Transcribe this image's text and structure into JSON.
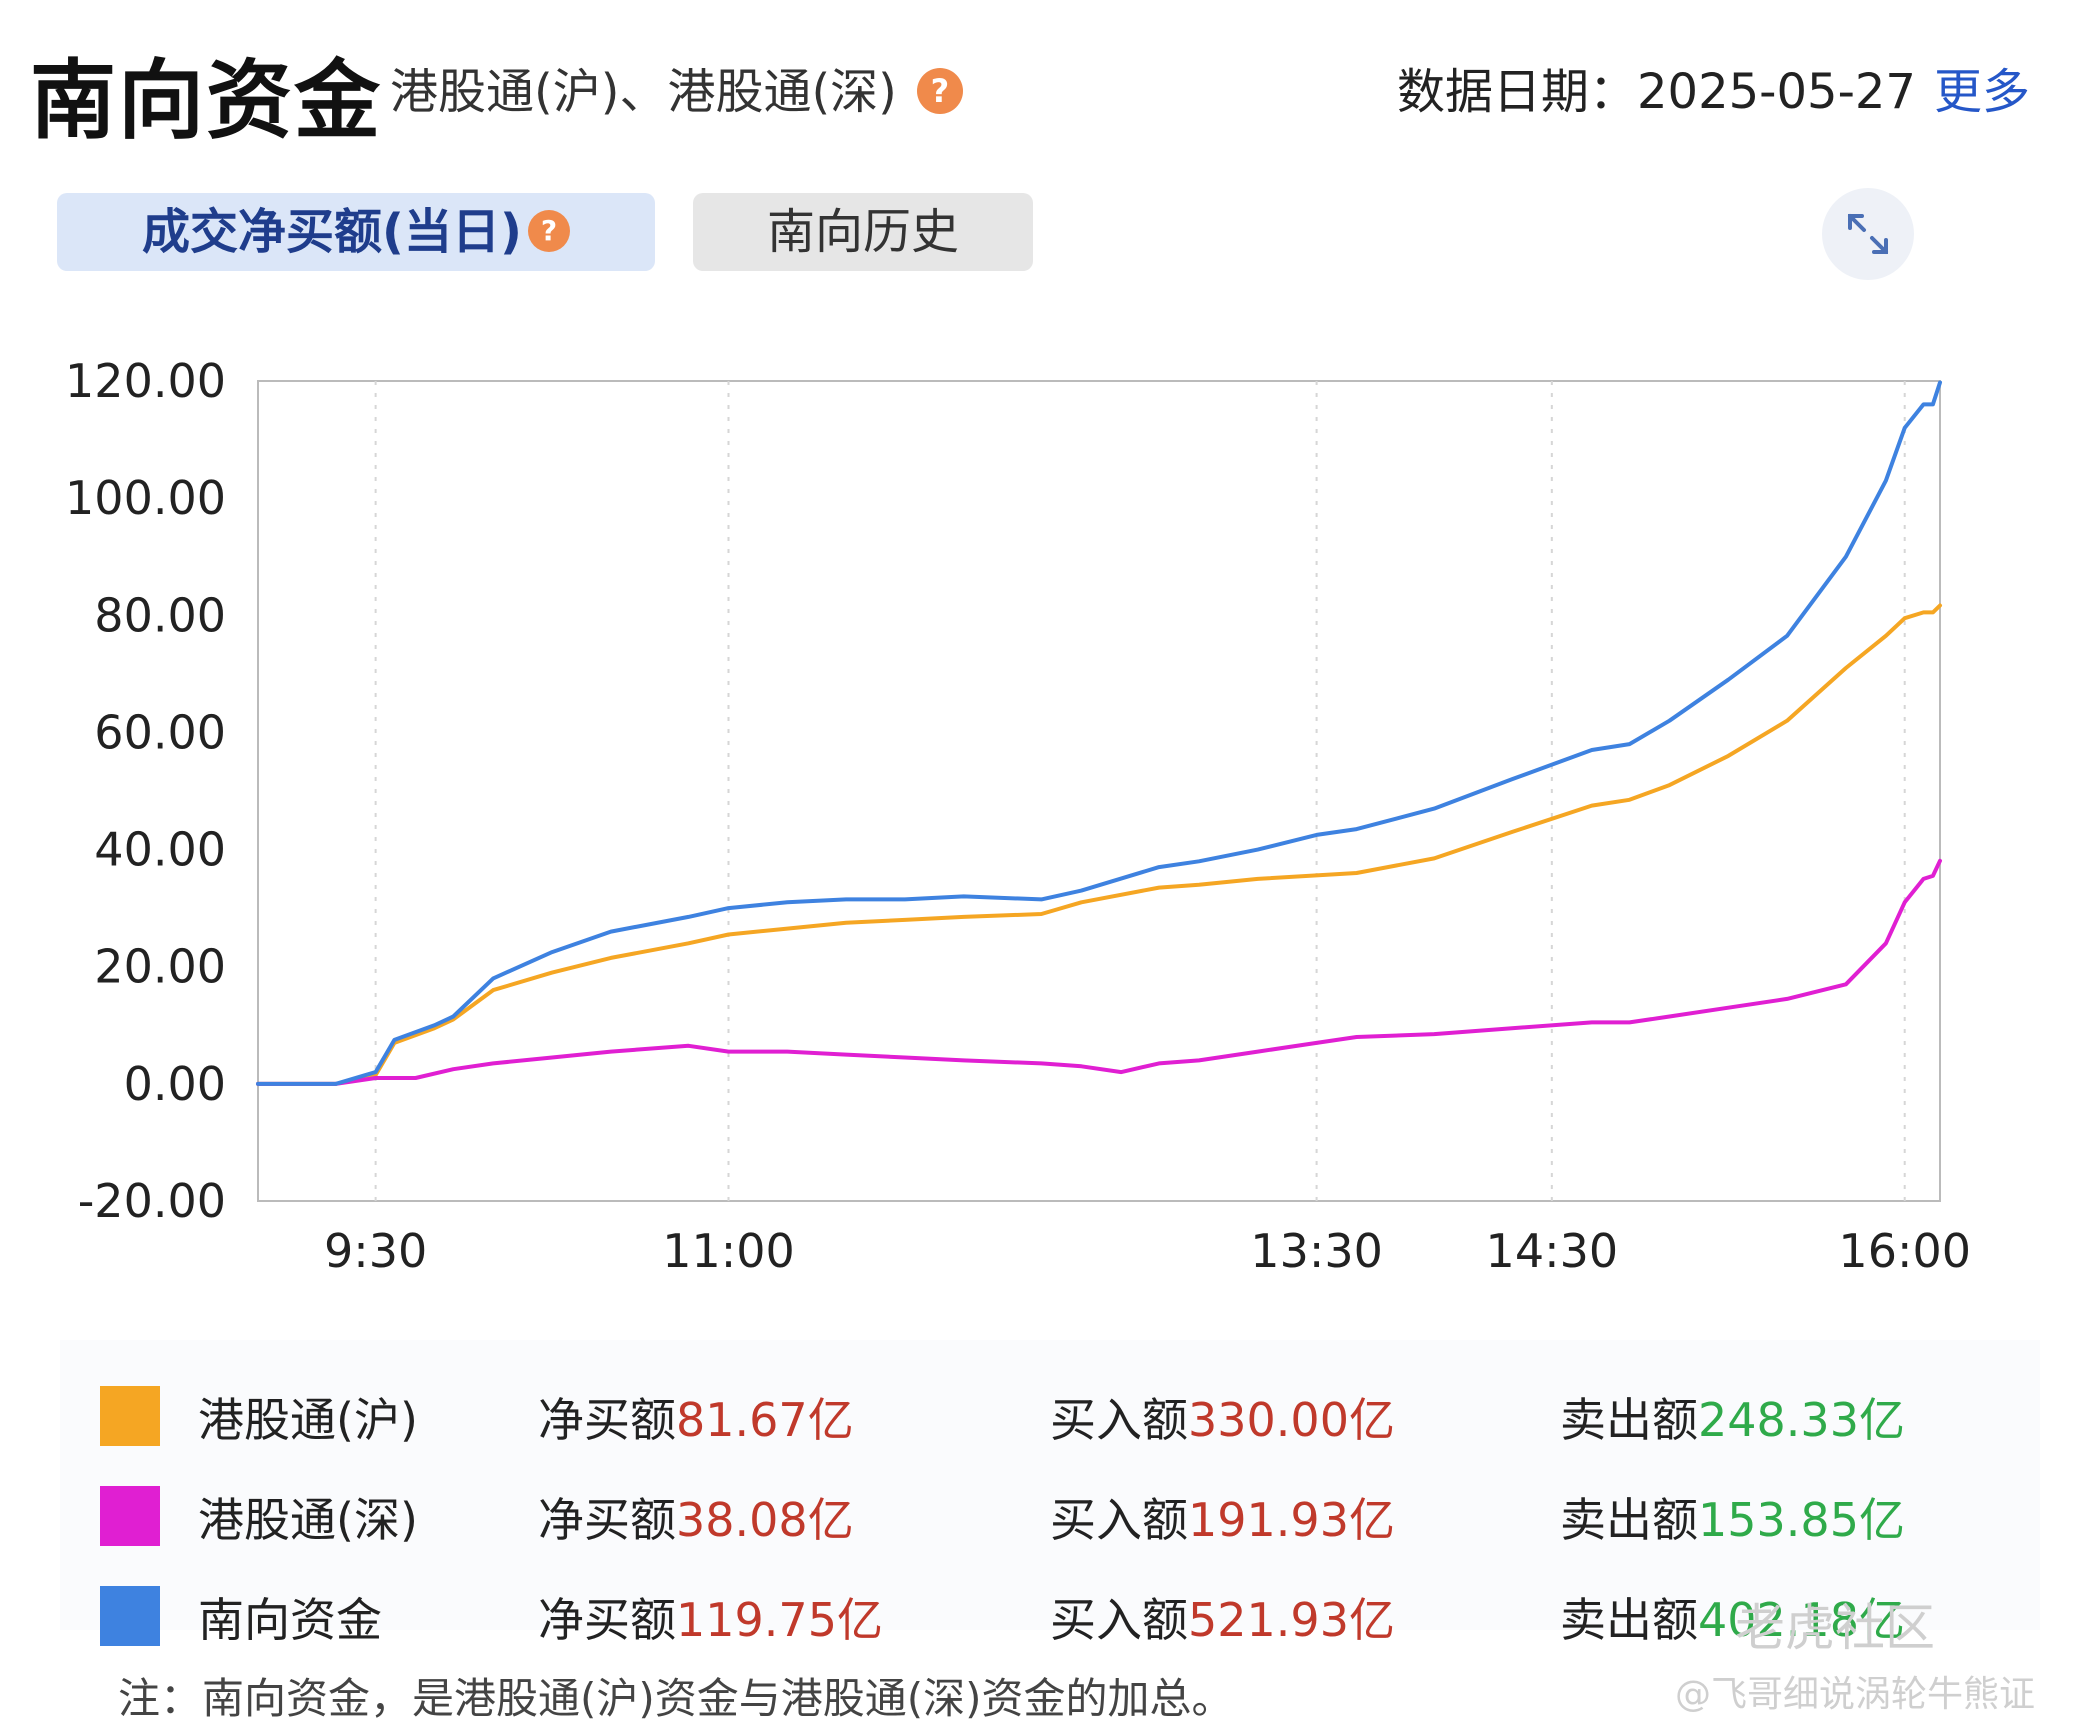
{
  "header": {
    "title": "南向资金",
    "subtitle": "港股通(沪)、港股通(深)",
    "help_glyph": "?",
    "date_label": "数据日期：2025-05-27",
    "more_label": "更多"
  },
  "tabs": [
    {
      "label": "成交净买额(当日)",
      "active": true
    },
    {
      "label": "南向历史",
      "active": false
    }
  ],
  "icons": {
    "expand": "expand-arrows-icon",
    "help": "question-circle-icon"
  },
  "colors": {
    "sh": "#F5A623",
    "sz": "#E01FD2",
    "total": "#3E82E0"
  },
  "chart_data": {
    "type": "line",
    "xlabel": "",
    "ylabel": "",
    "ylim": [
      -20,
      120
    ],
    "yticks": [
      "120.00",
      "100.00",
      "80.00",
      "60.00",
      "40.00",
      "20.00",
      "0.00",
      "-20.00"
    ],
    "xticks": [
      "9:30",
      "11:00",
      "13:30",
      "14:30",
      "16:00"
    ],
    "xrange": [
      9.0,
      16.15
    ],
    "grid": "dashed-vertical",
    "series": [
      {
        "name": "港股通(沪)",
        "color": "#F5A623",
        "points": [
          [
            9.0,
            0
          ],
          [
            9.33,
            0
          ],
          [
            9.5,
            1.5
          ],
          [
            9.58,
            7
          ],
          [
            9.75,
            9.5
          ],
          [
            9.83,
            11
          ],
          [
            10.0,
            16
          ],
          [
            10.25,
            19
          ],
          [
            10.5,
            21.5
          ],
          [
            10.83,
            24
          ],
          [
            11.0,
            25.5
          ],
          [
            11.25,
            26.5
          ],
          [
            11.5,
            27.5
          ],
          [
            11.75,
            28
          ],
          [
            12.0,
            28.5
          ],
          [
            12.33,
            29
          ],
          [
            12.5,
            31
          ],
          [
            12.83,
            33.5
          ],
          [
            13.0,
            34
          ],
          [
            13.25,
            35
          ],
          [
            13.67,
            36
          ],
          [
            14.0,
            38.5
          ],
          [
            14.33,
            43
          ],
          [
            14.67,
            47.5
          ],
          [
            14.83,
            48.5
          ],
          [
            15.0,
            51
          ],
          [
            15.25,
            56
          ],
          [
            15.5,
            62
          ],
          [
            15.75,
            71
          ],
          [
            15.92,
            76.5
          ],
          [
            16.0,
            79.5
          ],
          [
            16.08,
            80.5
          ],
          [
            16.12,
            80.5
          ],
          [
            16.15,
            81.67
          ]
        ]
      },
      {
        "name": "港股通(深)",
        "color": "#E01FD2",
        "points": [
          [
            9.0,
            0
          ],
          [
            9.33,
            0
          ],
          [
            9.5,
            1
          ],
          [
            9.67,
            1
          ],
          [
            9.83,
            2.5
          ],
          [
            10.0,
            3.5
          ],
          [
            10.25,
            4.5
          ],
          [
            10.5,
            5.5
          ],
          [
            10.83,
            6.5
          ],
          [
            11.0,
            5.5
          ],
          [
            11.25,
            5.5
          ],
          [
            11.5,
            5
          ],
          [
            11.75,
            4.5
          ],
          [
            12.0,
            4
          ],
          [
            12.33,
            3.5
          ],
          [
            12.5,
            3
          ],
          [
            12.67,
            2
          ],
          [
            12.83,
            3.5
          ],
          [
            13.0,
            4
          ],
          [
            13.25,
            5.5
          ],
          [
            13.5,
            7
          ],
          [
            13.67,
            8
          ],
          [
            14.0,
            8.5
          ],
          [
            14.33,
            9.5
          ],
          [
            14.67,
            10.5
          ],
          [
            14.83,
            10.5
          ],
          [
            15.0,
            11.5
          ],
          [
            15.25,
            13
          ],
          [
            15.5,
            14.5
          ],
          [
            15.75,
            17
          ],
          [
            15.92,
            24
          ],
          [
            16.0,
            31
          ],
          [
            16.08,
            35
          ],
          [
            16.12,
            35.5
          ],
          [
            16.15,
            38.08
          ]
        ]
      },
      {
        "name": "南向资金",
        "color": "#3E82E0",
        "points": [
          [
            9.0,
            0
          ],
          [
            9.33,
            0
          ],
          [
            9.5,
            2
          ],
          [
            9.58,
            7.5
          ],
          [
            9.75,
            10
          ],
          [
            9.83,
            11.5
          ],
          [
            10.0,
            18
          ],
          [
            10.25,
            22.5
          ],
          [
            10.5,
            26
          ],
          [
            10.83,
            28.5
          ],
          [
            11.0,
            30
          ],
          [
            11.25,
            31
          ],
          [
            11.5,
            31.5
          ],
          [
            11.75,
            31.5
          ],
          [
            12.0,
            32
          ],
          [
            12.33,
            31.5
          ],
          [
            12.5,
            33
          ],
          [
            12.83,
            37
          ],
          [
            13.0,
            38
          ],
          [
            13.25,
            40
          ],
          [
            13.5,
            42.5
          ],
          [
            13.67,
            43.5
          ],
          [
            14.0,
            47
          ],
          [
            14.33,
            52
          ],
          [
            14.67,
            57
          ],
          [
            14.83,
            58
          ],
          [
            15.0,
            62
          ],
          [
            15.25,
            69
          ],
          [
            15.5,
            76.5
          ],
          [
            15.75,
            90
          ],
          [
            15.92,
            103
          ],
          [
            16.0,
            112
          ],
          [
            16.08,
            116
          ],
          [
            16.12,
            116
          ],
          [
            16.15,
            119.75
          ]
        ]
      }
    ]
  },
  "legend": [
    {
      "name": "港股通(沪)",
      "net_label": "净买额",
      "net_value": "81.67亿",
      "buy_label": "买入额",
      "buy_value": "330.00亿",
      "sell_label": "卖出额",
      "sell_value": "248.33亿"
    },
    {
      "name": "港股通(深)",
      "net_label": "净买额",
      "net_value": "38.08亿",
      "buy_label": "买入额",
      "buy_value": "191.93亿",
      "sell_label": "卖出额",
      "sell_value": "153.85亿"
    },
    {
      "name": "南向资金",
      "net_label": "净买额",
      "net_value": "119.75亿",
      "buy_label": "买入额",
      "buy_value": "521.93亿",
      "sell_label": "卖出额",
      "sell_value": "402.18亿"
    }
  ],
  "note": "注：南向资金，是港股通(沪)资金与港股通(深)资金的加总。",
  "watermark": "老虎社区",
  "watermark_user": "@飞哥细说涡轮牛熊证"
}
